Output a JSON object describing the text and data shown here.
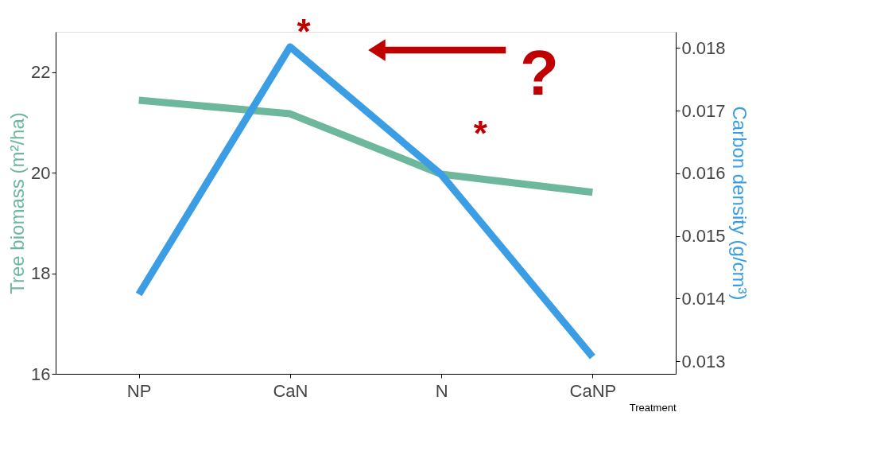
{
  "chart_data": {
    "type": "line",
    "xlabel": "Treatment",
    "ylabel": "Tree biomass (m²/ha)",
    "y2label": "Carbon density (g/cm³)",
    "categories": [
      "NP",
      "CaN",
      "N",
      "CaNP"
    ],
    "series": [
      {
        "color": "#6db89d",
        "values": [
          21.44,
          21.17,
          19.97,
          19.61
        ]
      },
      {
        "color": "#3b9de3",
        "values": [
          0.01407,
          0.01802,
          0.01598,
          0.01307
        ],
        "axis": "y2"
      }
    ],
    "ylim": [
      16,
      22.8
    ],
    "yticks": [
      16,
      18,
      20,
      22
    ],
    "y2lim": [
      0.0128,
      0.01826
    ],
    "y2ticks": [
      0.013,
      0.014,
      0.015,
      0.016,
      0.017,
      0.018
    ],
    "annotations": [
      "*",
      "*",
      "?"
    ],
    "grid": false,
    "line_style": "solid",
    "marker": "none"
  }
}
